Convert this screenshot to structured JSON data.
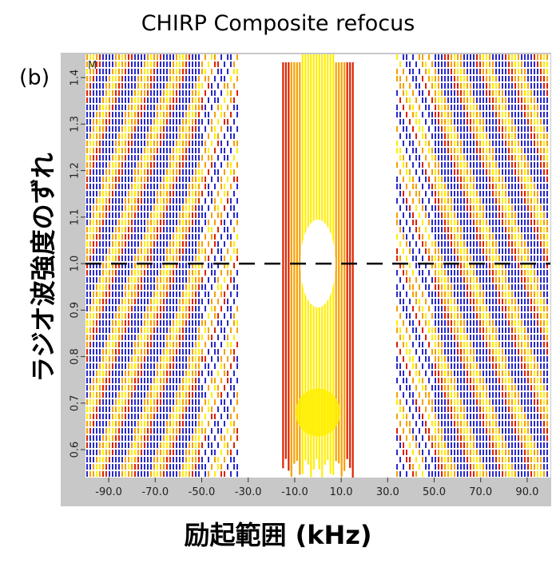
{
  "figure": {
    "title": "CHIRP Composite refocus",
    "panel_label": "(b)",
    "corner_mark": "M",
    "xlabel": "励起範囲 (kHz)",
    "ylabel": "ラジオ波強度のずれ"
  },
  "chart_data": {
    "type": "heatmap",
    "title": "CHIRP Composite refocus",
    "xlabel": "励起範囲 (kHz)",
    "ylabel": "ラジオ波強度のずれ",
    "x_axis": {
      "min": 100,
      "max": -100,
      "reversed": true,
      "ticks": [
        90,
        70,
        50,
        30,
        10,
        -10,
        -30,
        -50,
        -70,
        -90
      ],
      "tick_labels": [
        "90.0",
        "70.0",
        "50.0",
        "30.0",
        "10.0",
        "-10.0",
        "-30.0",
        "-50.0",
        "-70.0",
        "-90.0"
      ]
    },
    "y_axis": {
      "min": 0.54,
      "max": 1.45,
      "ticks": [
        0.6,
        0.7,
        0.8,
        0.9,
        1.0,
        1.1,
        1.2,
        1.3,
        1.4
      ],
      "tick_labels": [
        "0.6",
        "0.7",
        "0.8",
        "0.9",
        "1.0",
        "1.1",
        "1.2",
        "1.3",
        "1.4"
      ]
    },
    "reference_line": {
      "y": 1.0,
      "style": "dashed",
      "color": "#000000"
    },
    "contour_colors": {
      "high": "#ffee00",
      "mid": "#f7a000",
      "low": "#dd2200",
      "negative": "#2a2ac8"
    },
    "regions": {
      "center_band_khz": [
        -15,
        15
      ],
      "blank_gap_khz": [
        [
          20,
          32
        ],
        [
          -20,
          -32
        ]
      ],
      "diagonal_bands": "left and right diagonal contour fans"
    }
  }
}
